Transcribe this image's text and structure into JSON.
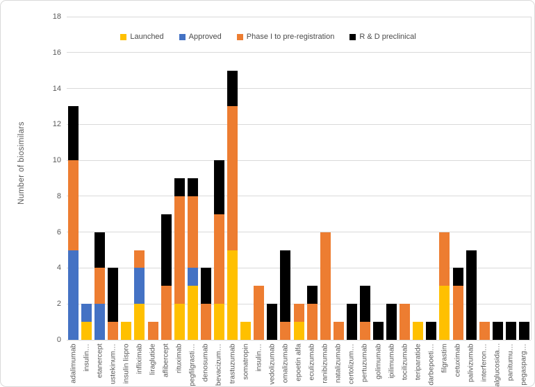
{
  "chart_data": {
    "type": "bar",
    "stacked": true,
    "title": "",
    "xlabel": "",
    "ylabel": "Number of biosimilars",
    "ylim": [
      0,
      18
    ],
    "yticks": [
      0,
      2,
      4,
      6,
      8,
      10,
      12,
      14,
      16,
      18
    ],
    "grid": true,
    "legend_position": "top-center",
    "categories": [
      "adalimumab",
      "insulin…",
      "etanercept",
      "ustekinum…",
      "insulin lispro",
      "infliximab",
      "liraglutide",
      "aflibercept",
      "rituximab",
      "pegfilgrasti…",
      "denosumab",
      "bevacizum…",
      "trastuzumab",
      "somatropin",
      "insulin…",
      "vedolizumab",
      "omalizumab",
      "epoetin alfa",
      "eculizumab",
      "ranibizumab",
      "natalizumab",
      "certolizum…",
      "pertuzumab",
      "golimumab",
      "ipilimumab",
      "tocilizumab",
      "teriparatide",
      "darbepoeti…",
      "filgrastim",
      "cetuximab",
      "palivizumab",
      "interferon…",
      "alglucosida…",
      "panitumu…",
      "pegasparg…"
    ],
    "series": [
      {
        "name": "Launched",
        "color": "#FFC000",
        "values": [
          0,
          1,
          0,
          0,
          1,
          2,
          0,
          0,
          2,
          3,
          0,
          2,
          5,
          1,
          0,
          0,
          0,
          1,
          0,
          0,
          0,
          0,
          0,
          0,
          0,
          0,
          1,
          0,
          3,
          0,
          0,
          0,
          0,
          0,
          0
        ]
      },
      {
        "name": "Approved",
        "color": "#4472C4",
        "values": [
          5,
          1,
          2,
          0,
          0,
          2,
          0,
          0,
          0,
          1,
          0,
          0,
          0,
          0,
          0,
          0,
          0,
          0,
          0,
          0,
          0,
          0,
          0,
          0,
          0,
          0,
          0,
          0,
          0,
          0,
          0,
          0,
          0,
          0,
          0
        ]
      },
      {
        "name": "Phase I to pre-registration",
        "color": "#ED7D31",
        "values": [
          5,
          0,
          2,
          1,
          0,
          1,
          1,
          3,
          6,
          4,
          2,
          5,
          8,
          0,
          3,
          0,
          1,
          1,
          2,
          6,
          1,
          0,
          1,
          0,
          0,
          2,
          0,
          0,
          3,
          3,
          0,
          1,
          0,
          0,
          0
        ]
      },
      {
        "name": "R & D preclinical",
        "color": "#000000",
        "values": [
          3,
          0,
          2,
          3,
          0,
          0,
          0,
          4,
          1,
          1,
          2,
          3,
          2,
          0,
          0,
          2,
          4,
          0,
          1,
          0,
          0,
          2,
          2,
          1,
          2,
          0,
          0,
          1,
          0,
          1,
          5,
          0,
          1,
          1,
          1
        ]
      }
    ]
  },
  "style": {
    "gridline_color": "#d9d9d9",
    "axis_text_color": "#595959",
    "legend_text_color": "#4a4a4a",
    "background_color": "#ffffff"
  }
}
